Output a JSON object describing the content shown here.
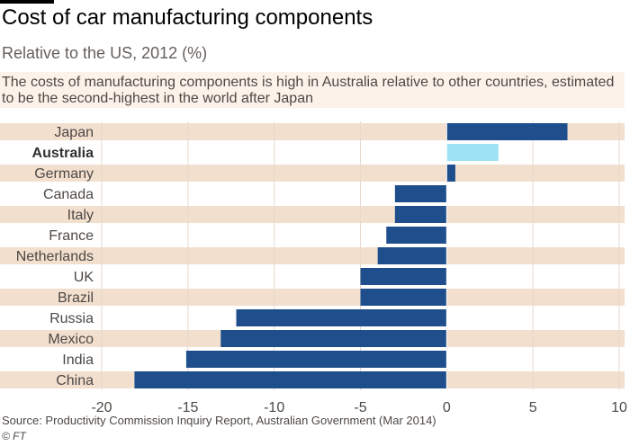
{
  "title": "Cost of car manufacturing components",
  "subtitle": "Relative to the US, 2012 (%)",
  "annotation": "The costs of manufacturing components is high in Australia relative to other countries, estimated to be the second-highest in the world after Japan",
  "source": "Source: Productivity Commission Inquiry Report, Australian Government (Mar 2014)",
  "credit": "© FT",
  "colors": {
    "bar": "#1e4e8c",
    "highlight": "#9ee3f5",
    "band": "#f2dfce",
    "grid": "#e6d9ce",
    "zero_line": "#ffffff"
  },
  "chart_data": {
    "type": "bar",
    "orientation": "horizontal",
    "categories": [
      "Japan",
      "Australia",
      "Germany",
      "Canada",
      "Italy",
      "France",
      "Netherlands",
      "UK",
      "Brazil",
      "Russia",
      "Mexico",
      "India",
      "China"
    ],
    "values": [
      7,
      3,
      0.5,
      -3,
      -3,
      -3.5,
      -4,
      -5,
      -5,
      -12.2,
      -13.1,
      -15.1,
      -18.1
    ],
    "highlight": "Australia",
    "xlim": [
      -20,
      10
    ],
    "xticks": [
      -20,
      -15,
      -10,
      -5,
      0,
      5,
      10
    ],
    "alternating_bands": true,
    "grid": true
  }
}
